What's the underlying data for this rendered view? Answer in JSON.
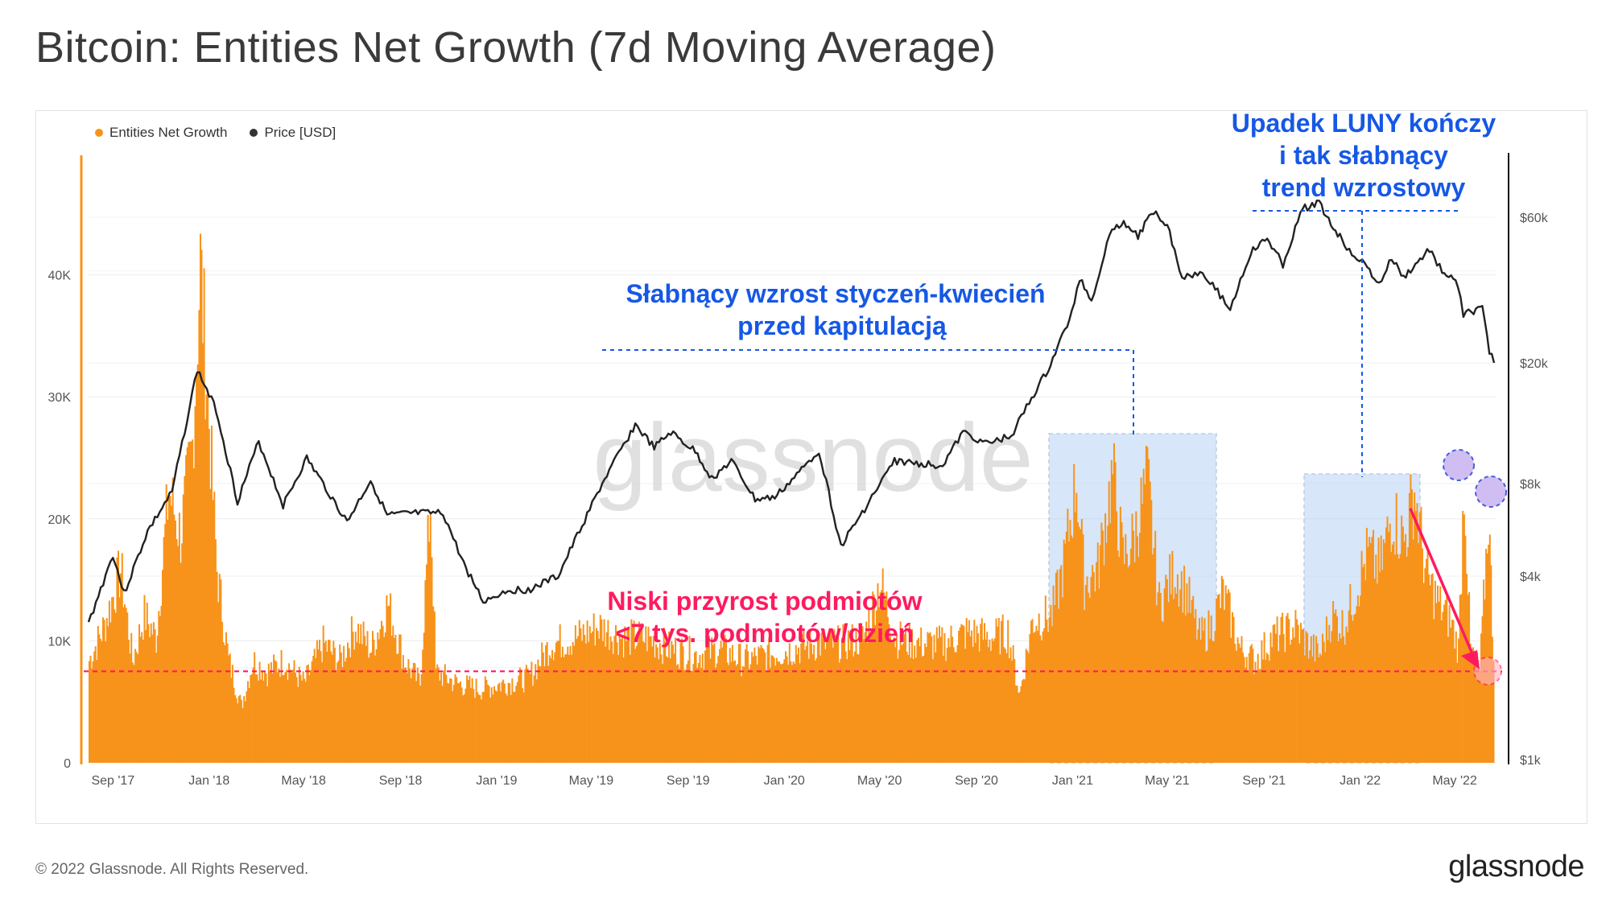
{
  "title": "Bitcoin: Entities Net Growth (7d Moving Average)",
  "legend": [
    {
      "label": "Entities Net Growth",
      "color": "#f7931a"
    },
    {
      "label": "Price [USD]",
      "color": "#333333"
    }
  ],
  "footer": "© 2022 Glassnode. All Rights Reserved.",
  "brand": "glassnode",
  "watermark": "glassnode",
  "annotations": {
    "luna": [
      "Upadek LUNY kończy",
      "i tak słabnący",
      "trend wzrostowy"
    ],
    "weakening": [
      "Słabnący wzrost styczeń-kwiecień",
      "przed kapitulacją"
    ],
    "low_growth": [
      "Niski przyrost podmiotów",
      "<7 tys. podmiotów/dzień"
    ]
  },
  "chart_data": {
    "type": "bar",
    "title": "Bitcoin: Entities Net Growth (7d Moving Average)",
    "x_ticks": [
      "Sep '17",
      "Jan '18",
      "May '18",
      "Sep '18",
      "Jan '19",
      "May '19",
      "Sep '19",
      "Jan '20",
      "May '20",
      "Sep '20",
      "Jan '21",
      "May '21",
      "Sep '21",
      "Jan '22",
      "May '22"
    ],
    "y_left_ticks": [
      "0",
      "10K",
      "20K",
      "30K",
      "40K"
    ],
    "y_left_range": [
      0,
      50000
    ],
    "y_right_ticks": [
      "$1k",
      "$4k",
      "$8k",
      "$20k",
      "$60k"
    ],
    "y_right_scale": "log",
    "threshold": 7500,
    "series": [
      {
        "name": "Entities Net Growth",
        "kind": "bar",
        "color": "#f7931a",
        "points": [
          [
            "2017-08-01",
            9000
          ],
          [
            "2017-08-20",
            12000
          ],
          [
            "2017-09-10",
            17000
          ],
          [
            "2017-09-25",
            9000
          ],
          [
            "2017-10-10",
            13000
          ],
          [
            "2017-10-25",
            11000
          ],
          [
            "2017-11-10",
            24000
          ],
          [
            "2017-11-25",
            20000
          ],
          [
            "2017-12-10",
            28000
          ],
          [
            "2017-12-20",
            44000
          ],
          [
            "2017-12-31",
            30000
          ],
          [
            "2018-01-10",
            17000
          ],
          [
            "2018-01-25",
            9000
          ],
          [
            "2018-02-10",
            5000
          ],
          [
            "2018-02-25",
            9000
          ],
          [
            "2018-03-15",
            8000
          ],
          [
            "2018-04-05",
            9000
          ],
          [
            "2018-05-01",
            7000
          ],
          [
            "2018-05-25",
            10500
          ],
          [
            "2018-06-15",
            9000
          ],
          [
            "2018-07-05",
            12000
          ],
          [
            "2018-07-25",
            10000
          ],
          [
            "2018-08-15",
            14000
          ],
          [
            "2018-09-05",
            9000
          ],
          [
            "2018-09-25",
            7000
          ],
          [
            "2018-10-08",
            23000
          ],
          [
            "2018-10-15",
            8000
          ],
          [
            "2018-11-10",
            7000
          ],
          [
            "2018-12-10",
            6500
          ],
          [
            "2019-01-10",
            7000
          ],
          [
            "2019-02-10",
            7500
          ],
          [
            "2019-03-10",
            10500
          ],
          [
            "2019-04-10",
            11000
          ],
          [
            "2019-05-10",
            12000
          ],
          [
            "2019-06-10",
            11000
          ],
          [
            "2019-07-10",
            11000
          ],
          [
            "2019-08-10",
            10000
          ],
          [
            "2019-09-10",
            9500
          ],
          [
            "2019-10-10",
            10000
          ],
          [
            "2019-11-10",
            9000
          ],
          [
            "2019-12-10",
            9500
          ],
          [
            "2020-01-10",
            10000
          ],
          [
            "2020-02-10",
            10500
          ],
          [
            "2020-03-10",
            10500
          ],
          [
            "2020-04-10",
            11000
          ],
          [
            "2020-05-01",
            16000
          ],
          [
            "2020-05-20",
            11000
          ],
          [
            "2020-06-20",
            10500
          ],
          [
            "2020-07-20",
            10500
          ],
          [
            "2020-08-20",
            11500
          ],
          [
            "2020-09-20",
            11000
          ],
          [
            "2020-10-10",
            11500
          ],
          [
            "2020-10-25",
            6000
          ],
          [
            "2020-11-10",
            12500
          ],
          [
            "2020-12-05",
            13000
          ],
          [
            "2020-12-20",
            17500
          ],
          [
            "2021-01-05",
            25000
          ],
          [
            "2021-01-15",
            16000
          ],
          [
            "2021-02-01",
            17000
          ],
          [
            "2021-02-20",
            25500
          ],
          [
            "2021-03-05",
            18000
          ],
          [
            "2021-03-20",
            20000
          ],
          [
            "2021-04-05",
            25000
          ],
          [
            "2021-04-20",
            14000
          ],
          [
            "2021-05-10",
            17000
          ],
          [
            "2021-05-25",
            15000
          ],
          [
            "2021-06-10",
            11000
          ],
          [
            "2021-06-25",
            12000
          ],
          [
            "2021-07-10",
            15000
          ],
          [
            "2021-08-01",
            10000
          ],
          [
            "2021-08-20",
            9000
          ],
          [
            "2021-09-10",
            11000
          ],
          [
            "2021-09-25",
            11500
          ],
          [
            "2021-10-10",
            12000
          ],
          [
            "2021-10-25",
            10500
          ],
          [
            "2021-11-10",
            9500
          ],
          [
            "2021-11-25",
            13000
          ],
          [
            "2021-12-10",
            12000
          ],
          [
            "2021-12-25",
            15000
          ],
          [
            "2022-01-10",
            18500
          ],
          [
            "2022-01-25",
            17000
          ],
          [
            "2022-02-10",
            22000
          ],
          [
            "2022-02-25",
            19500
          ],
          [
            "2022-03-10",
            24000
          ],
          [
            "2022-03-25",
            16500
          ],
          [
            "2022-04-10",
            14000
          ],
          [
            "2022-04-25",
            12500
          ],
          [
            "2022-05-05",
            10000
          ],
          [
            "2022-05-12",
            25000
          ],
          [
            "2022-05-20",
            10000
          ],
          [
            "2022-06-01",
            8000
          ],
          [
            "2022-06-12",
            22000
          ],
          [
            "2022-06-20",
            6500
          ]
        ]
      },
      {
        "name": "Price [USD]",
        "kind": "line",
        "color": "#333333",
        "points": [
          [
            "2017-08-01",
            2800
          ],
          [
            "2017-09-01",
            4700
          ],
          [
            "2017-09-15",
            3500
          ],
          [
            "2017-10-15",
            5600
          ],
          [
            "2017-11-15",
            7500
          ],
          [
            "2017-12-17",
            19000
          ],
          [
            "2018-01-10",
            14000
          ],
          [
            "2018-02-06",
            7000
          ],
          [
            "2018-03-05",
            11000
          ],
          [
            "2018-04-05",
            6800
          ],
          [
            "2018-05-05",
            9700
          ],
          [
            "2018-06-25",
            6000
          ],
          [
            "2018-07-25",
            8200
          ],
          [
            "2018-08-15",
            6300
          ],
          [
            "2018-09-20",
            6400
          ],
          [
            "2018-10-25",
            6400
          ],
          [
            "2018-11-20",
            4400
          ],
          [
            "2018-12-15",
            3300
          ],
          [
            "2019-01-15",
            3600
          ],
          [
            "2019-02-10",
            3600
          ],
          [
            "2019-03-20",
            4000
          ],
          [
            "2019-04-10",
            5200
          ],
          [
            "2019-05-15",
            8000
          ],
          [
            "2019-06-26",
            12500
          ],
          [
            "2019-07-20",
            10500
          ],
          [
            "2019-08-10",
            11800
          ],
          [
            "2019-09-10",
            10200
          ],
          [
            "2019-10-01",
            8300
          ],
          [
            "2019-10-26",
            9500
          ],
          [
            "2019-11-25",
            7100
          ],
          [
            "2019-12-20",
            7200
          ],
          [
            "2020-01-20",
            8700
          ],
          [
            "2020-02-14",
            10300
          ],
          [
            "2020-03-13",
            5000
          ],
          [
            "2020-04-15",
            6800
          ],
          [
            "2020-05-20",
            9500
          ],
          [
            "2020-06-20",
            9300
          ],
          [
            "2020-07-20",
            9200
          ],
          [
            "2020-08-15",
            11800
          ],
          [
            "2020-09-15",
            10800
          ],
          [
            "2020-10-15",
            11500
          ],
          [
            "2020-11-10",
            15300
          ],
          [
            "2020-12-01",
            19000
          ],
          [
            "2020-12-31",
            29000
          ],
          [
            "2021-01-10",
            38000
          ],
          [
            "2021-01-25",
            32000
          ],
          [
            "2021-02-20",
            56000
          ],
          [
            "2021-03-10",
            57000
          ],
          [
            "2021-03-25",
            52000
          ],
          [
            "2021-04-14",
            63000
          ],
          [
            "2021-05-01",
            57000
          ],
          [
            "2021-05-20",
            38000
          ],
          [
            "2021-06-15",
            40000
          ],
          [
            "2021-07-20",
            30000
          ],
          [
            "2021-08-15",
            46000
          ],
          [
            "2021-09-05",
            51000
          ],
          [
            "2021-09-25",
            42000
          ],
          [
            "2021-10-20",
            64000
          ],
          [
            "2021-11-10",
            67000
          ],
          [
            "2021-11-25",
            57000
          ],
          [
            "2021-12-15",
            48000
          ],
          [
            "2022-01-10",
            41000
          ],
          [
            "2022-01-25",
            36000
          ],
          [
            "2022-02-10",
            44000
          ],
          [
            "2022-02-25",
            38000
          ],
          [
            "2022-03-30",
            47000
          ],
          [
            "2022-04-15",
            40000
          ],
          [
            "2022-05-05",
            36000
          ],
          [
            "2022-05-12",
            29000
          ],
          [
            "2022-05-25",
            29500
          ],
          [
            "2022-06-05",
            30000
          ],
          [
            "2022-06-14",
            22000
          ],
          [
            "2022-06-20",
            20000
          ]
        ]
      }
    ]
  }
}
